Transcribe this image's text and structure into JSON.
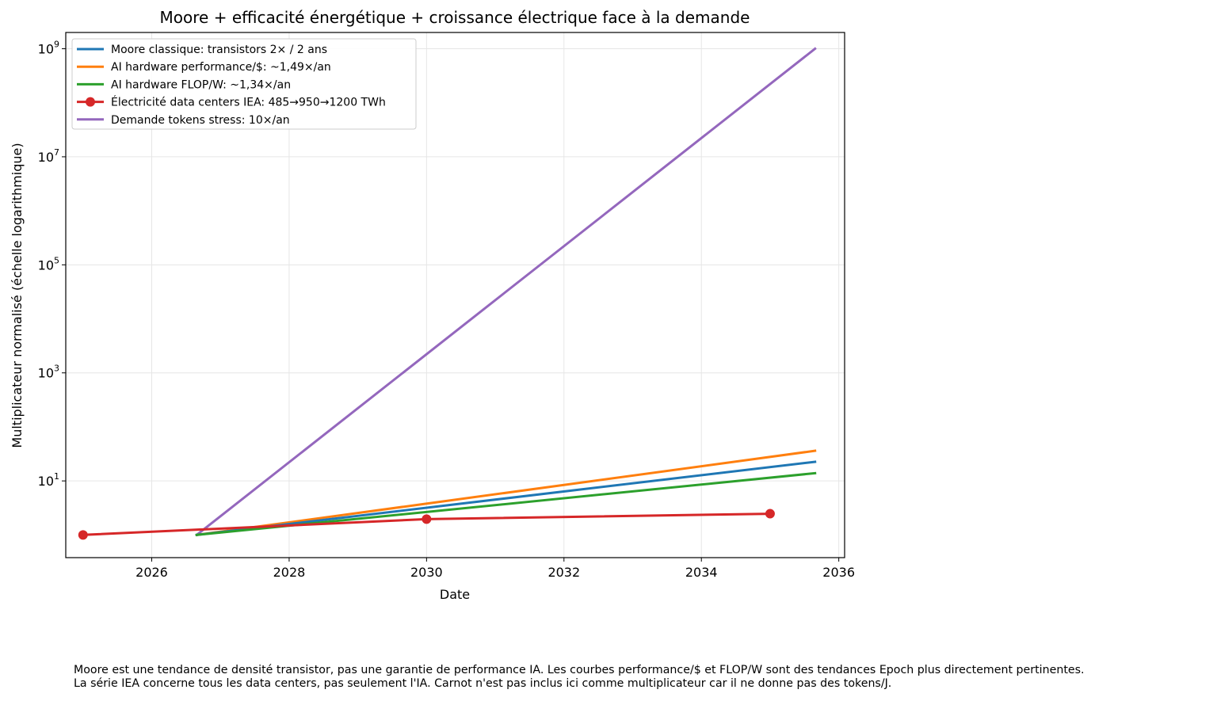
{
  "chart_data": {
    "type": "line",
    "title": "Moore + efficacité énergétique + croissance électrique face à la demande",
    "xlabel": "Date",
    "ylabel": "Multiplicateur normalisé (échelle logarithmique)",
    "y_scale": "log",
    "xlim": [
      "2024-10-01",
      "2036-02-01"
    ],
    "ylim": [
      0.38,
      2000000000
    ],
    "x_ticks": [
      {
        "date": "2026-01-01",
        "label": "2026"
      },
      {
        "date": "2028-01-01",
        "label": "2028"
      },
      {
        "date": "2030-01-01",
        "label": "2030"
      },
      {
        "date": "2032-01-01",
        "label": "2032"
      },
      {
        "date": "2034-01-01",
        "label": "2034"
      },
      {
        "date": "2036-01-01",
        "label": "2036"
      }
    ],
    "y_ticks": [
      {
        "value": 10,
        "base": "10",
        "exp": "1"
      },
      {
        "value": 1000,
        "base": "10",
        "exp": "3"
      },
      {
        "value": 100000,
        "base": "10",
        "exp": "5"
      },
      {
        "value": 10000000,
        "base": "10",
        "exp": "7"
      },
      {
        "value": 1000000000,
        "base": "10",
        "exp": "9"
      }
    ],
    "grid": true,
    "legend_position": "top-left",
    "series": [
      {
        "name": "Moore classique: transistors 2× / 2 ans",
        "color": "#1f77b4",
        "marker": false,
        "points": [
          {
            "x": "2026-08-28",
            "y": 1
          },
          {
            "x": "2035-08-28",
            "y": 22.6
          }
        ]
      },
      {
        "name": "AI hardware performance/$: ~1,49×/an",
        "color": "#ff7f0e",
        "marker": false,
        "points": [
          {
            "x": "2026-08-28",
            "y": 1
          },
          {
            "x": "2035-08-28",
            "y": 36.1
          }
        ]
      },
      {
        "name": "AI hardware FLOP/W: ~1,34×/an",
        "color": "#2ca02c",
        "marker": false,
        "points": [
          {
            "x": "2026-08-28",
            "y": 1
          },
          {
            "x": "2035-08-28",
            "y": 13.9
          }
        ]
      },
      {
        "name": "Électricité data centers IEA: 485→950→1200 TWh",
        "color": "#d62728",
        "marker": true,
        "points": [
          {
            "x": "2025-01-01",
            "y": 1
          },
          {
            "x": "2030-01-01",
            "y": 1.96
          },
          {
            "x": "2035-01-01",
            "y": 2.47
          }
        ]
      },
      {
        "name": "Demande tokens stress: 10×/an",
        "color": "#9467bd",
        "marker": false,
        "points": [
          {
            "x": "2026-08-28",
            "y": 1
          },
          {
            "x": "2035-08-28",
            "y": 1000000000
          }
        ]
      }
    ]
  },
  "caption": {
    "line1": "Moore est une tendance de densité transistor, pas une garantie de performance IA. Les courbes performance/$ et FLOP/W sont des tendances Epoch plus directement pertinentes.",
    "line2": "La série IEA concerne tous les data centers, pas seulement l'IA. Carnot n'est pas inclus ici comme multiplicateur car il ne donne pas des tokens/J."
  }
}
